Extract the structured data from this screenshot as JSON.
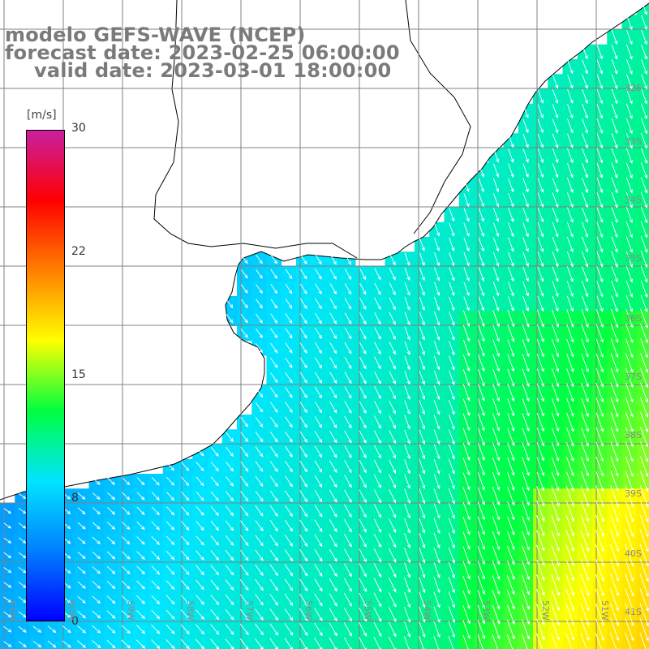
{
  "title": {
    "line1": "modelo GEFS-WAVE (NCEP)",
    "line2": "forecast date: 2023-02-25 06:00:00",
    "line3": "valid date: 2023-03-01 18:00:00"
  },
  "colorbar": {
    "unit": "[m/s]",
    "ticks": [
      "30",
      "22",
      "15",
      "8",
      "0"
    ],
    "tick_values": [
      30,
      22,
      15,
      8,
      0
    ],
    "range": [
      0,
      30
    ],
    "colors": [
      "#0000ff",
      "#0080ff",
      "#00e5ff",
      "#00ff40",
      "#ffff00",
      "#ff8000",
      "#ff0000",
      "#c81fa0"
    ]
  },
  "map": {
    "lon_range": [
      -62,
      -51
    ],
    "lat_range": [
      -41.5,
      -30
    ],
    "lon_labels": [
      "61W",
      "60W",
      "59W",
      "58W",
      "57W",
      "56W",
      "55W",
      "54W",
      "53W",
      "52W",
      "51W"
    ],
    "lat_labels": [
      "32S",
      "33S",
      "34S",
      "35S",
      "36S",
      "37S",
      "38S",
      "39S",
      "40S",
      "41S"
    ],
    "grid_color": "#808080",
    "land_color": "#ffffff",
    "coast_color": "#000000",
    "arrow_color": "#ffffff"
  }
}
